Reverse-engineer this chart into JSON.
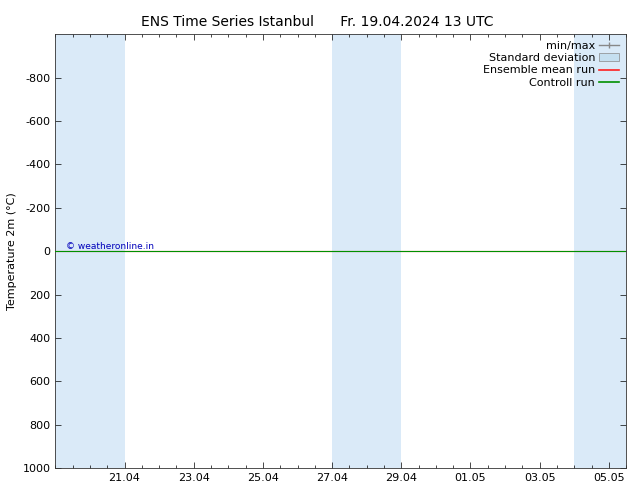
{
  "title_left": "ENS Time Series Istanbul",
  "title_right": "Fr. 19.04.2024 13 UTC",
  "ylabel": "Temperature 2m (°C)",
  "ylim_bottom": 1000,
  "ylim_top": -1000,
  "yticks": [
    -800,
    -600,
    -400,
    -200,
    0,
    200,
    400,
    600,
    800,
    1000
  ],
  "xlim": [
    0,
    16.5
  ],
  "xtick_positions": [
    2,
    4,
    6,
    8,
    10,
    12,
    14,
    16
  ],
  "xtick_labels": [
    "21.04",
    "23.04",
    "25.04",
    "27.04",
    "29.04",
    "01.05",
    "03.05",
    "05.05"
  ],
  "shaded_ranges": [
    [
      0,
      2
    ],
    [
      8,
      9
    ],
    [
      9,
      10
    ],
    [
      15,
      16.5
    ]
  ],
  "shaded_color": "#daeaf8",
  "line_y": 0,
  "ensemble_mean_color": "#ff2020",
  "control_run_color": "#009000",
  "copyright_text": "© weatheronline.in",
  "copyright_color": "#0000bb",
  "background_color": "#ffffff",
  "legend_items": [
    "min/max",
    "Standard deviation",
    "Ensemble mean run",
    "Controll run"
  ],
  "minmax_color": "#888888",
  "std_dev_color": "#c5dff0",
  "title_fontsize": 10,
  "axis_label_fontsize": 8,
  "tick_fontsize": 8,
  "legend_fontsize": 8
}
